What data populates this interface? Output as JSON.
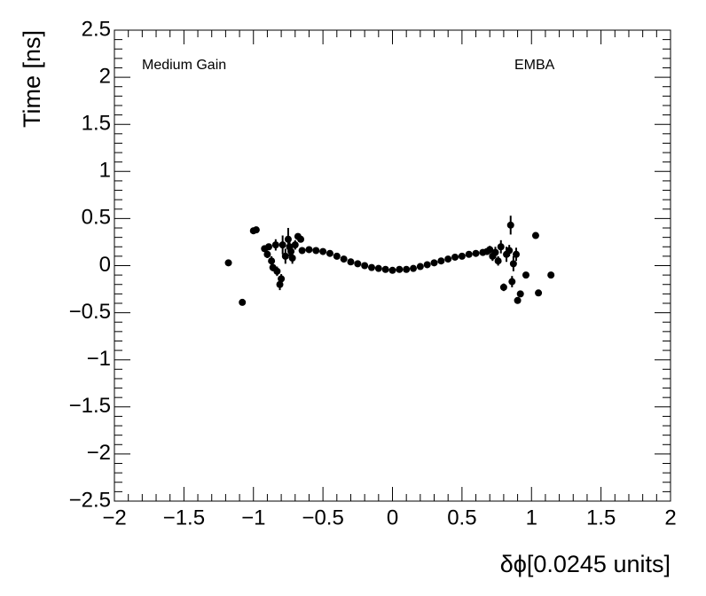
{
  "chart_data": {
    "type": "scatter",
    "xlabel": "δϕ[0.0245 units]",
    "ylabel": "Time [ns]",
    "annotations": [
      "Medium Gain",
      "EMBA"
    ],
    "xlim": [
      -2,
      2
    ],
    "xticks": [
      {
        "value": -2,
        "label": "−2"
      },
      {
        "value": -1.5,
        "label": "−1.5"
      },
      {
        "value": -1,
        "label": "−1"
      },
      {
        "value": -0.5,
        "label": "−0.5"
      },
      0,
      0.5,
      1,
      1.5,
      2
    ],
    "ylim": [
      -2.5,
      2.5
    ],
    "yticks": [
      {
        "value": -2.5,
        "label": "−2.5"
      },
      {
        "value": -2,
        "label": "−2"
      },
      {
        "value": -1.5,
        "label": "−1.5"
      },
      {
        "value": -1,
        "label": "−1"
      },
      {
        "value": -0.5,
        "label": "−0.5"
      },
      0,
      0.5,
      1,
      1.5,
      2,
      2.5
    ],
    "color": "#000000",
    "x": [
      -1.18,
      -1.08,
      -1.0,
      -0.98,
      -0.92,
      -0.9,
      -0.89,
      -0.87,
      -0.86,
      -0.84,
      -0.83,
      -0.81,
      -0.8,
      -0.79,
      -0.77,
      -0.75,
      -0.74,
      -0.73,
      -0.72,
      -0.7,
      -0.68,
      -0.66,
      -0.65,
      -0.6,
      -0.55,
      -0.5,
      -0.45,
      -0.4,
      -0.35,
      -0.3,
      -0.25,
      -0.2,
      -0.15,
      -0.1,
      -0.05,
      0,
      0.05,
      0.1,
      0.15,
      0.2,
      0.25,
      0.3,
      0.35,
      0.4,
      0.45,
      0.5,
      0.55,
      0.6,
      0.65,
      0.68,
      0.7,
      0.72,
      0.74,
      0.76,
      0.78,
      0.8,
      0.82,
      0.84,
      0.85,
      0.86,
      0.87,
      0.89,
      0.9,
      0.92,
      0.96,
      1.03,
      1.05,
      1.14
    ],
    "values": [
      0.03,
      -0.39,
      0.37,
      0.38,
      0.18,
      0.12,
      0.2,
      0.05,
      -0.02,
      0.22,
      -0.06,
      -0.2,
      -0.14,
      0.22,
      0.1,
      0.28,
      0.2,
      0.15,
      0.08,
      0.22,
      0.31,
      0.28,
      0.16,
      0.17,
      0.16,
      0.15,
      0.13,
      0.1,
      0.07,
      0.04,
      0.02,
      0.0,
      -0.02,
      -0.03,
      -0.04,
      -0.05,
      -0.04,
      -0.04,
      -0.03,
      -0.01,
      0.01,
      0.03,
      0.05,
      0.07,
      0.09,
      0.1,
      0.12,
      0.13,
      0.14,
      0.15,
      0.17,
      0.1,
      0.14,
      0.05,
      0.2,
      -0.23,
      0.12,
      0.16,
      0.43,
      -0.17,
      0.02,
      0.12,
      -0.37,
      -0.3,
      -0.1,
      0.32,
      -0.29,
      -0.1
    ],
    "errors": [
      0.01,
      0.01,
      0.02,
      0.02,
      0.03,
      0.04,
      0.03,
      0.05,
      0.04,
      0.06,
      0.05,
      0.06,
      0.05,
      0.1,
      0.08,
      0.12,
      0.1,
      0.08,
      0.06,
      0.05,
      0.03,
      0.03,
      0.02,
      0.01,
      0.01,
      0.01,
      0.01,
      0.01,
      0.01,
      0.01,
      0.01,
      0.01,
      0.01,
      0.01,
      0.01,
      0.01,
      0.01,
      0.01,
      0.01,
      0.01,
      0.01,
      0.01,
      0.01,
      0.01,
      0.01,
      0.01,
      0.01,
      0.01,
      0.02,
      0.03,
      0.04,
      0.05,
      0.06,
      0.05,
      0.07,
      0.04,
      0.08,
      0.06,
      0.1,
      0.06,
      0.08,
      0.07,
      0.03,
      0.02,
      0.02,
      0.02,
      0.02,
      0.02
    ]
  }
}
